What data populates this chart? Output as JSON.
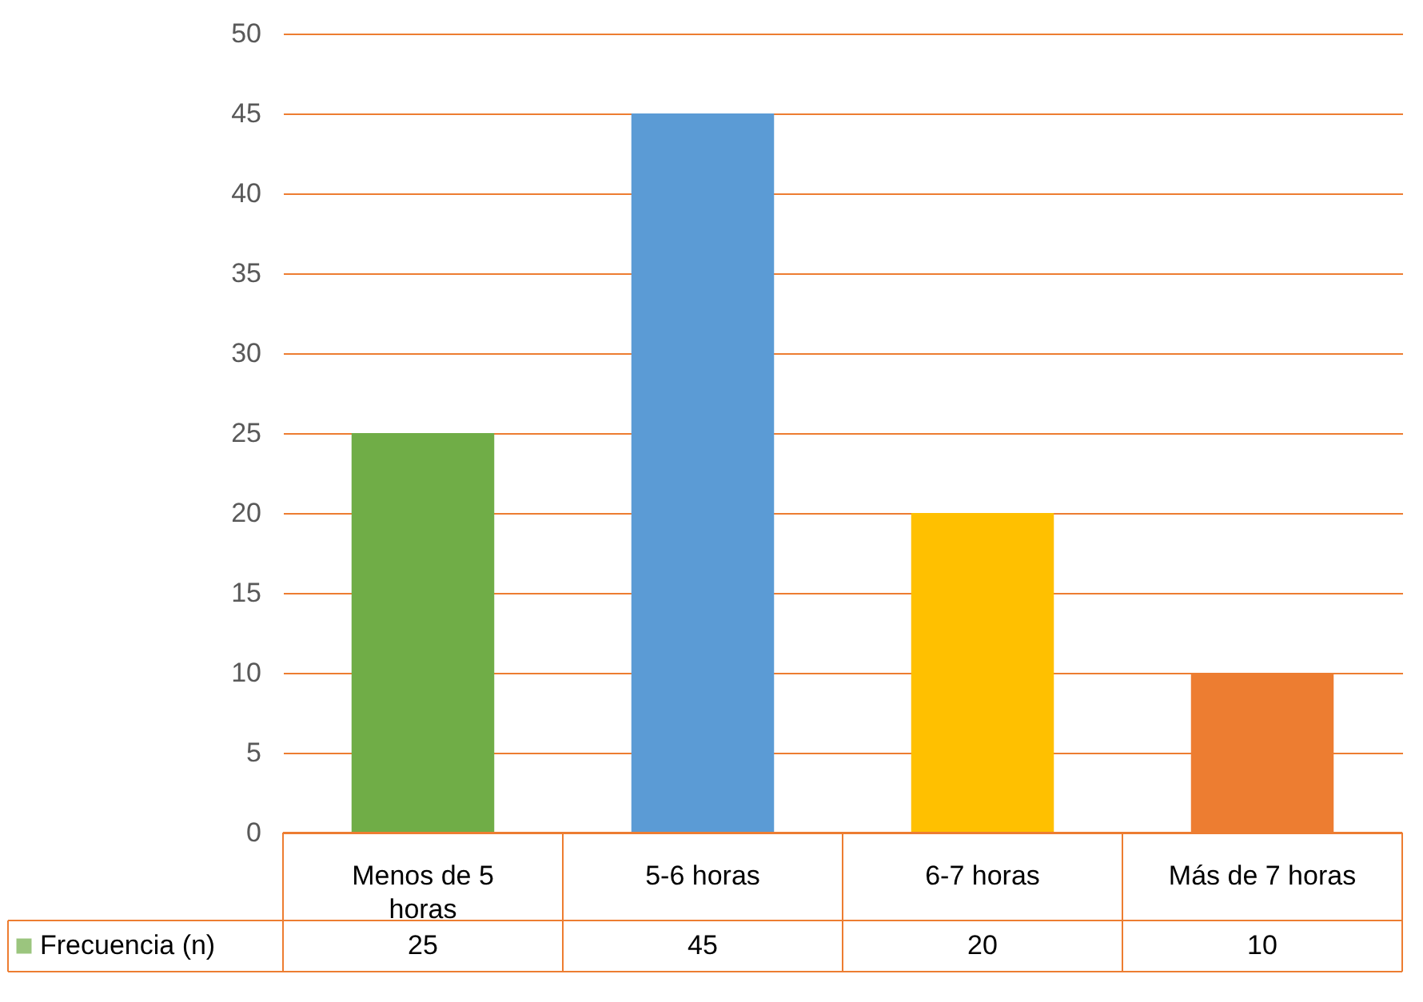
{
  "chart_data": {
    "type": "bar",
    "categories": [
      "Menos de 5 horas",
      "5-6 horas",
      "6-7 horas",
      "Más de 7 horas"
    ],
    "series": [
      {
        "name": "Frecuencia (n)",
        "color": "#70ad47",
        "colors": [
          "#70ad47",
          "#5b9bd5",
          "#ffc000",
          "#ed7d31"
        ],
        "values": [
          25,
          45,
          20,
          10
        ]
      }
    ],
    "ylim": [
      0,
      50
    ],
    "yticks": [
      0,
      5,
      10,
      15,
      20,
      25,
      30,
      35,
      40,
      45,
      50
    ],
    "grid": "y",
    "data_labels": true,
    "legend": "bottom left"
  }
}
